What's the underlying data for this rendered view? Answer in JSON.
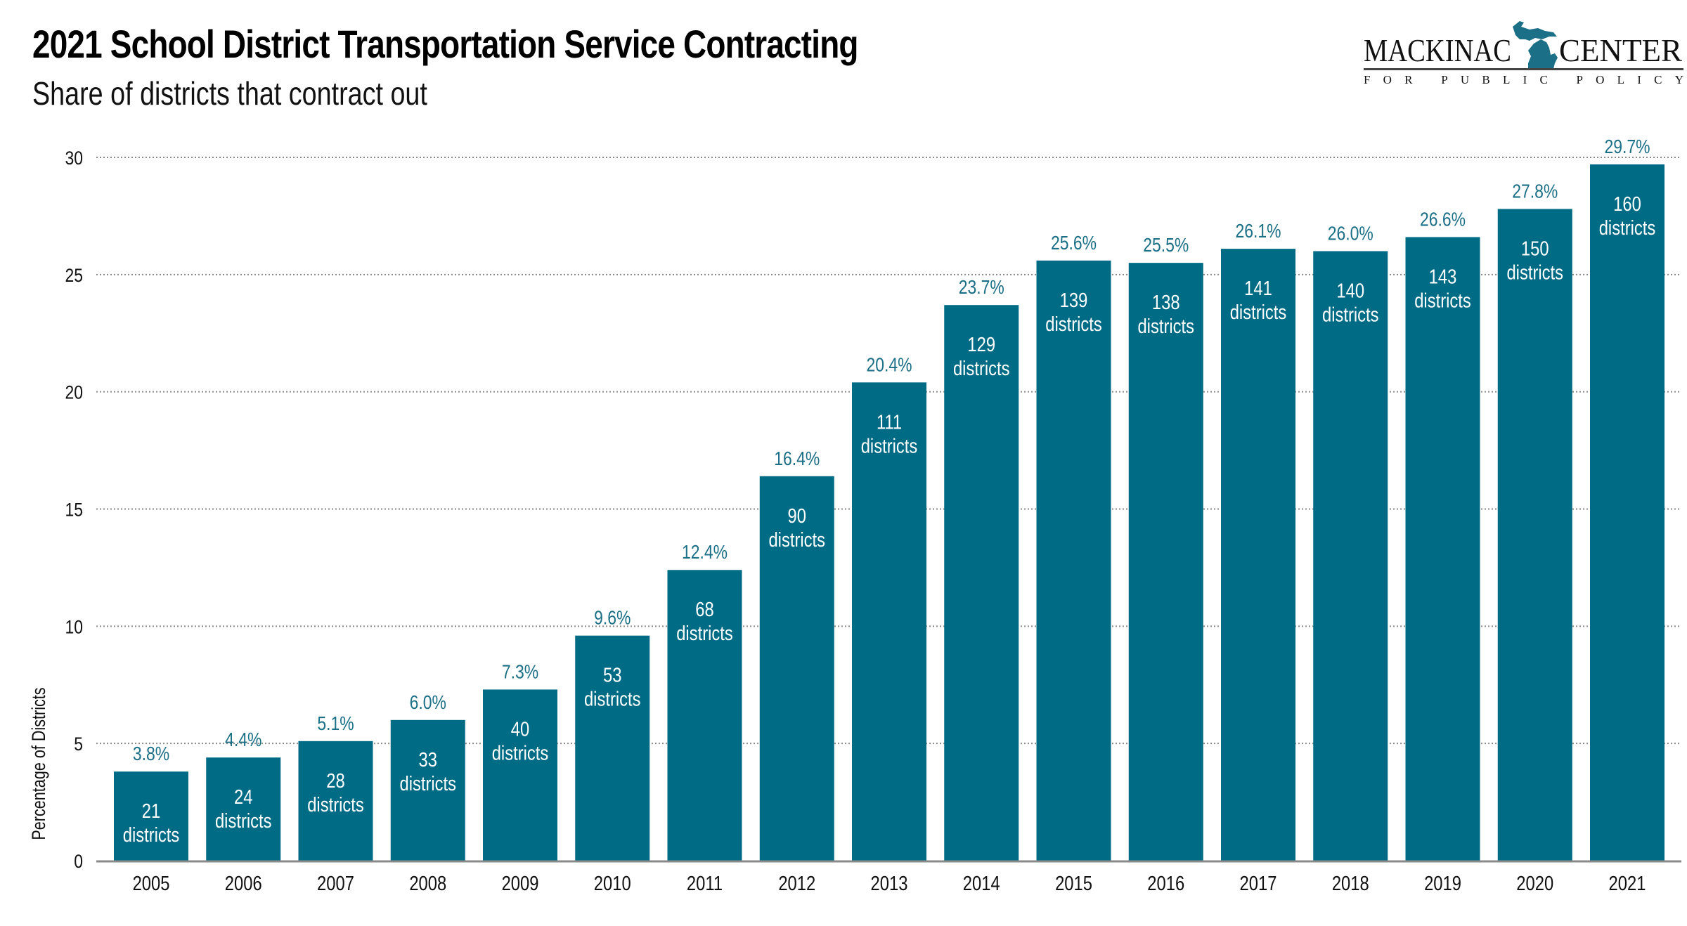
{
  "header": {
    "title": "2021 School District Transportation Service Contracting",
    "subtitle": "Share of districts that contract out"
  },
  "logo": {
    "name_left": "MACKINAC",
    "name_right": "CENTER",
    "tagline": "FOR PUBLIC POLICY",
    "icon": "michigan-map-icon",
    "brand_color": "#1b6f86"
  },
  "colors": {
    "bar": "#006b84",
    "label": "#1b6f86",
    "grid": "#8a8a8a",
    "axis": "#8a8a8a"
  },
  "chart_data": {
    "type": "bar",
    "title": "2021 School District Transportation Service Contracting",
    "subtitle": "Share of districts that contract out",
    "xlabel": "",
    "ylabel": "Percentage of Districts",
    "ylim": [
      0,
      30
    ],
    "yticks": [
      0,
      5,
      10,
      15,
      20,
      25,
      30
    ],
    "grid": true,
    "grid_style": "dotted",
    "legend": "none",
    "categories": [
      "2005",
      "2006",
      "2007",
      "2008",
      "2009",
      "2010",
      "2011",
      "2012",
      "2013",
      "2014",
      "2015",
      "2016",
      "2017",
      "2018",
      "2019",
      "2020",
      "2021"
    ],
    "series": [
      {
        "name": "Share of districts that contract out (%)",
        "values": [
          3.8,
          4.4,
          5.1,
          6.0,
          7.3,
          9.6,
          12.4,
          16.4,
          20.4,
          23.7,
          25.6,
          25.5,
          26.1,
          26.0,
          26.6,
          27.8,
          29.7
        ],
        "labels": [
          "3.8%",
          "4.4%",
          "5.1%",
          "6.0%",
          "7.3%",
          "9.6%",
          "12.4%",
          "16.4%",
          "20.4%",
          "23.7%",
          "25.6%",
          "25.5%",
          "26.1%",
          "26.0%",
          "26.6%",
          "27.8%",
          "29.7%"
        ]
      }
    ],
    "district_counts": [
      21,
      24,
      28,
      33,
      40,
      53,
      68,
      90,
      111,
      129,
      139,
      138,
      141,
      140,
      143,
      150,
      160
    ],
    "count_suffix": "districts"
  }
}
